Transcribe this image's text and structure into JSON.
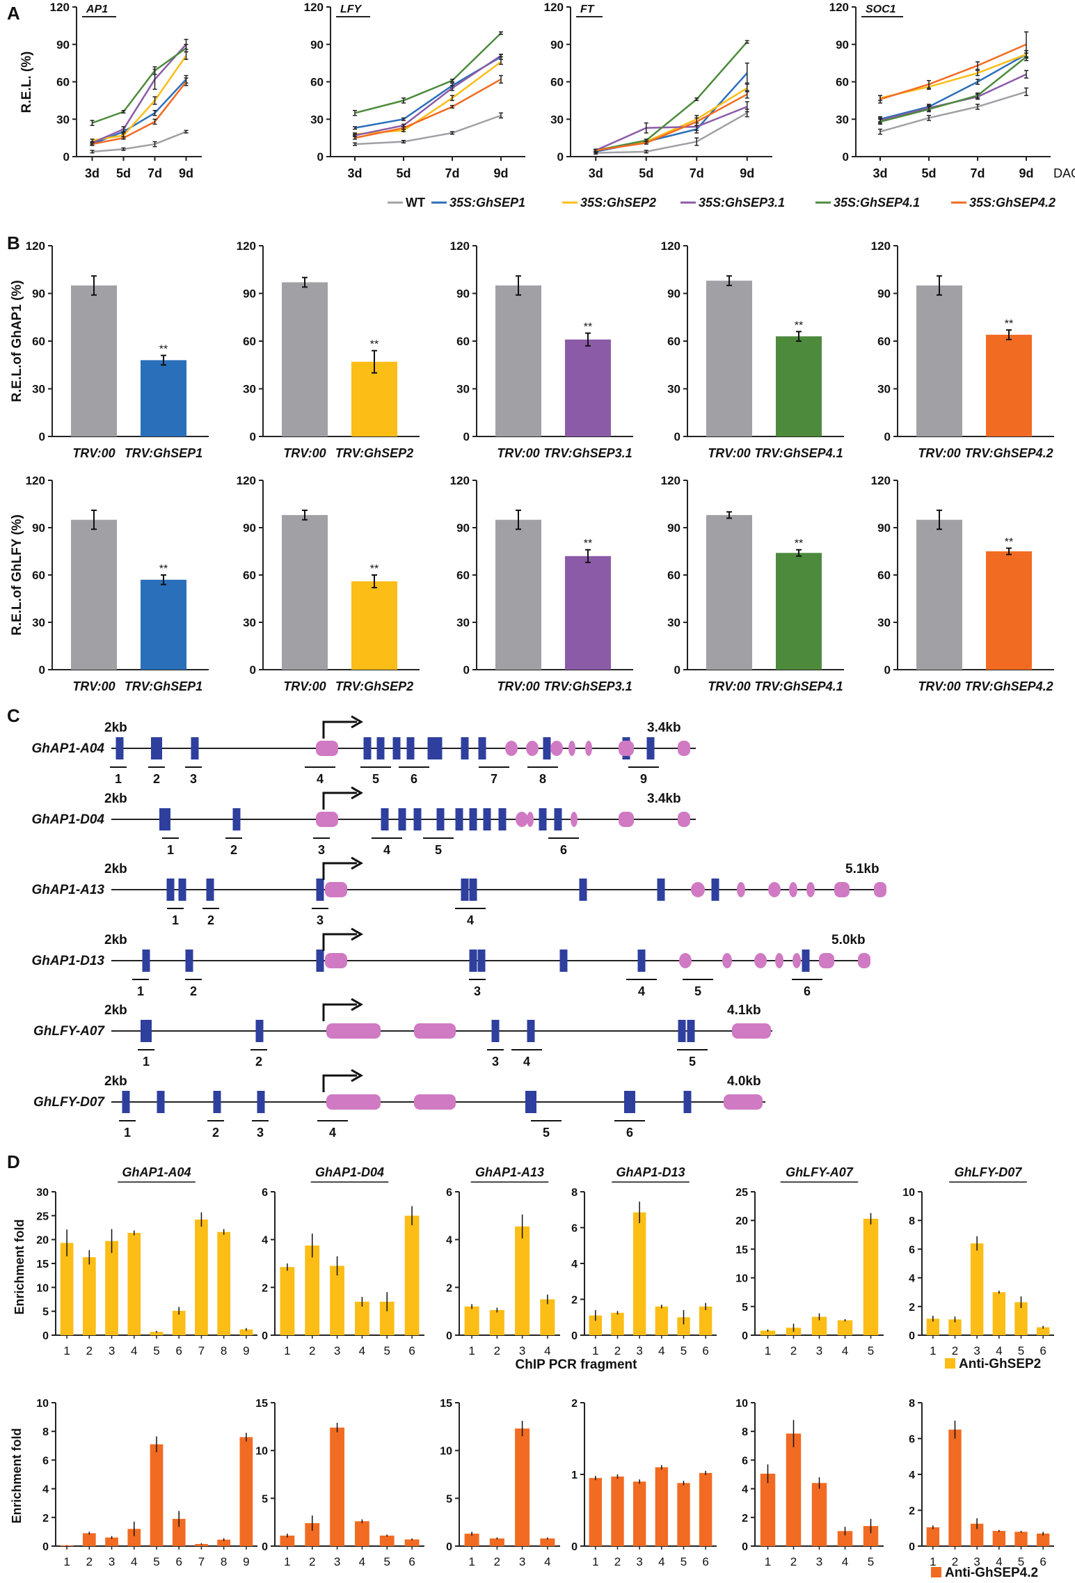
{
  "colors": {
    "WT": "#a0a0a5",
    "SEP1": "#2a6fba",
    "SEP2": "#fbbd16",
    "SEP31": "#8b5ba8",
    "SEP41": "#4d8a3c",
    "SEP42": "#f26b22",
    "exon": "#2e3f9e",
    "pink": "#d07ac3",
    "gray": "#a0a0a5",
    "axis": "#222222"
  },
  "panel_labels": [
    "A",
    "B",
    "C",
    "D"
  ],
  "panel_a": {
    "x_unit": "DAG",
    "y_label": "R.E.L. (%)",
    "legend": [
      "WT",
      "35S:GhSEP1",
      "35S:GhSEP2",
      "35S:GhSEP3.1",
      "35S:GhSEP4.1",
      "35S:GhSEP4.2"
    ]
  },
  "panel_b": {
    "y_label_ap1": "R.E.L.of GhAP1 (%)",
    "y_label_lfy": "R.E.L.of GhLFY (%)",
    "control_label": "TRV:00",
    "sig": "**"
  },
  "panel_c": {
    "scale_label": "2kb",
    "genes": [
      {
        "name": "GhAP1-A04",
        "length": "3.4kb",
        "fragments": [
          "1",
          "2",
          "3",
          "4",
          "5",
          "6",
          "7",
          "8",
          "9"
        ]
      },
      {
        "name": "GhAP1-D04",
        "length": "3.4kb",
        "fragments": [
          "1",
          "2",
          "3",
          "4",
          "5",
          "6"
        ]
      },
      {
        "name": "GhAP1-A13",
        "length": "5.1kb",
        "fragments": [
          "1",
          "2",
          "3",
          "4"
        ]
      },
      {
        "name": "GhAP1-D13",
        "length": "5.0kb",
        "fragments": [
          "1",
          "2",
          "3",
          "4",
          "5",
          "6"
        ]
      },
      {
        "name": "GhLFY-A07",
        "length": "4.1kb",
        "fragments": [
          "1",
          "2",
          "3",
          "4",
          "5"
        ]
      },
      {
        "name": "GhLFY-D07",
        "length": "4.0kb",
        "fragments": [
          "1",
          "2",
          "3",
          "4",
          "5",
          "6"
        ]
      }
    ]
  },
  "panel_d": {
    "y_label": "Enrichment fold",
    "x_label": "ChIP  PCR fragment",
    "legend_sep2": "Anti-GhSEP2",
    "legend_sep42": "Anti-GhSEP4.2"
  },
  "chart_data": [
    {
      "panel": "A",
      "type": "line",
      "title": "AP1",
      "categories": [
        "3d",
        "5d",
        "7d",
        "9d"
      ],
      "ylim": [
        0,
        120
      ],
      "yticks": [
        0,
        30,
        60,
        90,
        120
      ],
      "series": [
        {
          "name": "WT",
          "values": [
            4,
            6,
            10,
            20
          ],
          "err": [
            1,
            1,
            2,
            1
          ]
        },
        {
          "name": "35S:GhSEP1",
          "values": [
            10,
            20,
            35,
            62
          ],
          "err": [
            1,
            2,
            2,
            3
          ]
        },
        {
          "name": "35S:GhSEP2",
          "values": [
            13,
            17,
            45,
            81
          ],
          "err": [
            1,
            2,
            3,
            3
          ]
        },
        {
          "name": "35S:GhSEP3.1",
          "values": [
            11,
            22,
            62,
            90
          ],
          "err": [
            1,
            2,
            8,
            4
          ]
        },
        {
          "name": "35S:GhSEP4.1",
          "values": [
            27,
            36,
            69,
            87
          ],
          "err": [
            2,
            1,
            3,
            3
          ]
        },
        {
          "name": "35S:GhSEP4.2",
          "values": [
            10,
            15,
            28,
            60
          ],
          "err": [
            1,
            1,
            2,
            3
          ]
        }
      ]
    },
    {
      "panel": "A",
      "type": "line",
      "title": "LFY",
      "categories": [
        "3d",
        "5d",
        "7d",
        "9d"
      ],
      "ylim": [
        0,
        120
      ],
      "yticks": [
        0,
        30,
        60,
        90,
        120
      ],
      "series": [
        {
          "name": "WT",
          "values": [
            10,
            12,
            19,
            33
          ],
          "err": [
            1,
            1,
            1,
            2
          ]
        },
        {
          "name": "35S:GhSEP1",
          "values": [
            23,
            30,
            57,
            80
          ],
          "err": [
            1,
            1,
            2,
            2
          ]
        },
        {
          "name": "35S:GhSEP2",
          "values": [
            18,
            21,
            47,
            76
          ],
          "err": [
            1,
            1,
            2,
            2
          ]
        },
        {
          "name": "35S:GhSEP3.1",
          "values": [
            17,
            25,
            55,
            81
          ],
          "err": [
            1,
            1,
            2,
            1
          ]
        },
        {
          "name": "35S:GhSEP4.1",
          "values": [
            35,
            45,
            61,
            99
          ],
          "err": [
            2,
            2,
            1,
            1
          ]
        },
        {
          "name": "35S:GhSEP4.2",
          "values": [
            15,
            23,
            40,
            62
          ],
          "err": [
            1,
            1,
            1,
            3
          ]
        }
      ]
    },
    {
      "panel": "A",
      "type": "line",
      "title": "FT",
      "categories": [
        "3d",
        "5d",
        "7d",
        "9d"
      ],
      "ylim": [
        0,
        120
      ],
      "yticks": [
        0,
        30,
        60,
        90,
        120
      ],
      "series": [
        {
          "name": "WT",
          "values": [
            3,
            4,
            12,
            35
          ],
          "err": [
            1,
            1,
            3,
            3
          ]
        },
        {
          "name": "35S:GhSEP1",
          "values": [
            4,
            12,
            22,
            67
          ],
          "err": [
            1,
            1,
            3,
            8
          ]
        },
        {
          "name": "35S:GhSEP2",
          "values": [
            5,
            12,
            30,
            55
          ],
          "err": [
            1,
            1,
            3,
            3
          ]
        },
        {
          "name": "35S:GhSEP3.1",
          "values": [
            5,
            23,
            24,
            40
          ],
          "err": [
            1,
            4,
            3,
            4
          ]
        },
        {
          "name": "35S:GhSEP4.1",
          "values": [
            5,
            13,
            46,
            92
          ],
          "err": [
            1,
            1,
            1,
            1
          ]
        },
        {
          "name": "35S:GhSEP4.2",
          "values": [
            5,
            11,
            28,
            50
          ],
          "err": [
            1,
            1,
            3,
            3
          ]
        }
      ]
    },
    {
      "panel": "A",
      "type": "line",
      "title": "SOC1",
      "categories": [
        "3d",
        "5d",
        "7d",
        "9d"
      ],
      "ylim": [
        0,
        120
      ],
      "yticks": [
        0,
        30,
        60,
        90,
        120
      ],
      "series": [
        {
          "name": "WT",
          "values": [
            20,
            31,
            40,
            52
          ],
          "err": [
            2,
            2,
            2,
            3
          ]
        },
        {
          "name": "35S:GhSEP1",
          "values": [
            30,
            40,
            60,
            82
          ],
          "err": [
            2,
            2,
            2,
            3
          ]
        },
        {
          "name": "35S:GhSEP2",
          "values": [
            47,
            56,
            67,
            82
          ],
          "err": [
            2,
            2,
            2,
            3
          ]
        },
        {
          "name": "35S:GhSEP3.1",
          "values": [
            29,
            39,
            48,
            66
          ],
          "err": [
            2,
            2,
            2,
            3
          ]
        },
        {
          "name": "35S:GhSEP4.1",
          "values": [
            28,
            38,
            49,
            80
          ],
          "err": [
            2,
            2,
            2,
            3
          ]
        },
        {
          "name": "35S:GhSEP4.2",
          "values": [
            46,
            58,
            73,
            90
          ],
          "err": [
            3,
            3,
            3,
            10
          ]
        }
      ]
    },
    {
      "panel": "B",
      "type": "bar",
      "gene": "GhAP1",
      "categories": [
        "TRV:00",
        "TRV:GhSEP1"
      ],
      "values": [
        95,
        48
      ],
      "err": [
        6,
        3
      ],
      "ylim": [
        0,
        120
      ],
      "yticks": [
        0,
        30,
        60,
        90,
        120
      ]
    },
    {
      "panel": "B",
      "type": "bar",
      "gene": "GhAP1",
      "categories": [
        "TRV:00",
        "TRV:GhSEP2"
      ],
      "values": [
        97,
        47
      ],
      "err": [
        3,
        7
      ],
      "ylim": [
        0,
        120
      ],
      "yticks": [
        0,
        30,
        60,
        90,
        120
      ]
    },
    {
      "panel": "B",
      "type": "bar",
      "gene": "GhAP1",
      "categories": [
        "TRV:00",
        "TRV:GhSEP3.1"
      ],
      "values": [
        95,
        61
      ],
      "err": [
        6,
        4
      ],
      "ylim": [
        0,
        120
      ],
      "yticks": [
        0,
        30,
        60,
        90,
        120
      ]
    },
    {
      "panel": "B",
      "type": "bar",
      "gene": "GhAP1",
      "categories": [
        "TRV:00",
        "TRV:GhSEP4.1"
      ],
      "values": [
        98,
        63
      ],
      "err": [
        3,
        3
      ],
      "ylim": [
        0,
        120
      ],
      "yticks": [
        0,
        30,
        60,
        90,
        120
      ]
    },
    {
      "panel": "B",
      "type": "bar",
      "gene": "GhAP1",
      "categories": [
        "TRV:00",
        "TRV:GhSEP4.2"
      ],
      "values": [
        95,
        64
      ],
      "err": [
        6,
        3
      ],
      "ylim": [
        0,
        120
      ],
      "yticks": [
        0,
        30,
        60,
        90,
        120
      ]
    },
    {
      "panel": "B",
      "type": "bar",
      "gene": "GhLFY",
      "categories": [
        "TRV:00",
        "TRV:GhSEP1"
      ],
      "values": [
        95,
        57
      ],
      "err": [
        6,
        3
      ],
      "ylim": [
        0,
        120
      ],
      "yticks": [
        0,
        30,
        60,
        90,
        120
      ]
    },
    {
      "panel": "B",
      "type": "bar",
      "gene": "GhLFY",
      "categories": [
        "TRV:00",
        "TRV:GhSEP2"
      ],
      "values": [
        98,
        56
      ],
      "err": [
        3,
        4
      ],
      "ylim": [
        0,
        120
      ],
      "yticks": [
        0,
        30,
        60,
        90,
        120
      ]
    },
    {
      "panel": "B",
      "type": "bar",
      "gene": "GhLFY",
      "categories": [
        "TRV:00",
        "TRV:GhSEP3.1"
      ],
      "values": [
        95,
        72
      ],
      "err": [
        6,
        4
      ],
      "ylim": [
        0,
        120
      ],
      "yticks": [
        0,
        30,
        60,
        90,
        120
      ]
    },
    {
      "panel": "B",
      "type": "bar",
      "gene": "GhLFY",
      "categories": [
        "TRV:00",
        "TRV:GhSEP4.1"
      ],
      "values": [
        98,
        74
      ],
      "err": [
        2,
        2
      ],
      "ylim": [
        0,
        120
      ],
      "yticks": [
        0,
        30,
        60,
        90,
        120
      ]
    },
    {
      "panel": "B",
      "type": "bar",
      "gene": "GhLFY",
      "categories": [
        "TRV:00",
        "TRV:GhSEP4.2"
      ],
      "values": [
        95,
        75
      ],
      "err": [
        6,
        2
      ],
      "ylim": [
        0,
        120
      ],
      "yticks": [
        0,
        30,
        60,
        90,
        120
      ]
    },
    {
      "panel": "D",
      "type": "bar",
      "antibody": "Anti-GhSEP2",
      "title": "GhAP1-A04",
      "categories": [
        "1",
        "2",
        "3",
        "4",
        "5",
        "6",
        "7",
        "8",
        "9"
      ],
      "values": [
        19.3,
        16.3,
        19.7,
        21.4,
        0.7,
        5.1,
        24.2,
        21.6,
        1.2
      ],
      "err": [
        2.8,
        1.5,
        2.5,
        0.5,
        0.2,
        0.8,
        1.5,
        0.6,
        0.3
      ],
      "ylim": [
        0,
        30
      ],
      "yticks": [
        0,
        5,
        10,
        15,
        20,
        25,
        30
      ]
    },
    {
      "panel": "D",
      "type": "bar",
      "antibody": "Anti-GhSEP2",
      "title": "GhAP1-D04",
      "categories": [
        "1",
        "2",
        "3",
        "4",
        "5",
        "6"
      ],
      "values": [
        2.85,
        3.75,
        2.9,
        1.4,
        1.4,
        5.0
      ],
      "err": [
        0.15,
        0.5,
        0.4,
        0.2,
        0.4,
        0.4
      ],
      "ylim": [
        0,
        6
      ],
      "yticks": [
        0,
        2,
        4,
        6
      ]
    },
    {
      "panel": "D",
      "type": "bar",
      "antibody": "Anti-GhSEP2",
      "title": "GhAP1-A13",
      "categories": [
        "1",
        "2",
        "3",
        "4"
      ],
      "values": [
        1.2,
        1.05,
        4.55,
        1.5
      ],
      "err": [
        0.1,
        0.1,
        0.5,
        0.2
      ],
      "ylim": [
        0,
        6
      ],
      "yticks": [
        0,
        2,
        4,
        6
      ]
    },
    {
      "panel": "D",
      "type": "bar",
      "antibody": "Anti-GhSEP2",
      "title": "GhAP1-D13",
      "categories": [
        "1",
        "2",
        "3",
        "4",
        "5",
        "6"
      ],
      "values": [
        1.1,
        1.25,
        6.85,
        1.6,
        1.0,
        1.6
      ],
      "err": [
        0.3,
        0.1,
        0.6,
        0.1,
        0.4,
        0.2
      ],
      "ylim": [
        0,
        8
      ],
      "yticks": [
        0,
        2,
        4,
        6,
        8
      ]
    },
    {
      "panel": "D",
      "type": "bar",
      "antibody": "Anti-GhSEP2",
      "title": "GhLFY-A07",
      "categories": [
        "1",
        "2",
        "3",
        "4",
        "5"
      ],
      "values": [
        0.8,
        1.3,
        3.2,
        2.6,
        20.3
      ],
      "err": [
        0.2,
        0.7,
        0.6,
        0.2,
        1.0
      ],
      "ylim": [
        0,
        25
      ],
      "yticks": [
        0,
        5,
        10,
        15,
        20,
        25
      ]
    },
    {
      "panel": "D",
      "type": "bar",
      "antibody": "Anti-GhSEP2",
      "title": "GhLFY-D07",
      "categories": [
        "1",
        "2",
        "3",
        "4",
        "5",
        "6"
      ],
      "values": [
        1.15,
        1.1,
        6.4,
        3.0,
        2.3,
        0.55
      ],
      "err": [
        0.2,
        0.2,
        0.5,
        0.1,
        0.4,
        0.1
      ],
      "ylim": [
        0,
        10
      ],
      "yticks": [
        0,
        2,
        4,
        6,
        8,
        10
      ]
    },
    {
      "panel": "D",
      "type": "bar",
      "antibody": "Anti-GhSEP4.2",
      "title": "GhAP1-A04",
      "categories": [
        "1",
        "2",
        "3",
        "4",
        "5",
        "6",
        "7",
        "8",
        "9"
      ],
      "values": [
        0.05,
        0.9,
        0.6,
        1.2,
        7.1,
        1.9,
        0.15,
        0.45,
        7.6
      ],
      "err": [
        0.02,
        0.1,
        0.1,
        0.5,
        0.55,
        0.55,
        0.05,
        0.1,
        0.3
      ],
      "ylim": [
        0,
        10
      ],
      "yticks": [
        0,
        2,
        4,
        6,
        8,
        10
      ]
    },
    {
      "panel": "D",
      "type": "bar",
      "antibody": "Anti-GhSEP4.2",
      "title": "GhAP1-D04",
      "categories": [
        "1",
        "2",
        "3",
        "4",
        "5",
        "6"
      ],
      "values": [
        1.1,
        2.4,
        12.4,
        2.6,
        1.1,
        0.7
      ],
      "err": [
        0.2,
        0.8,
        0.5,
        0.2,
        0.1,
        0.1
      ],
      "ylim": [
        0,
        15
      ],
      "yticks": [
        0,
        5,
        10,
        15
      ]
    },
    {
      "panel": "D",
      "type": "bar",
      "antibody": "Anti-GhSEP4.2",
      "title": "GhAP1-A13",
      "categories": [
        "1",
        "2",
        "3",
        "4"
      ],
      "values": [
        1.3,
        0.8,
        12.3,
        0.8
      ],
      "err": [
        0.2,
        0.1,
        0.8,
        0.1
      ],
      "ylim": [
        0,
        15
      ],
      "yticks": [
        0,
        5,
        10,
        15
      ]
    },
    {
      "panel": "D",
      "type": "bar",
      "antibody": "Anti-GhSEP4.2",
      "title": "GhAP1-D13",
      "categories": [
        "1",
        "2",
        "3",
        "4",
        "5",
        "6"
      ],
      "values": [
        0.95,
        0.97,
        0.9,
        1.1,
        0.88,
        1.02
      ],
      "err": [
        0.03,
        0.03,
        0.03,
        0.03,
        0.03,
        0.03
      ],
      "ylim": [
        0,
        2
      ],
      "yticks": [
        0,
        1,
        2
      ]
    },
    {
      "panel": "D",
      "type": "bar",
      "antibody": "Anti-GhSEP4.2",
      "title": "GhLFY-A07",
      "categories": [
        "1",
        "2",
        "3",
        "4",
        "5"
      ],
      "values": [
        5.05,
        7.85,
        4.4,
        1.05,
        1.4
      ],
      "err": [
        0.65,
        0.95,
        0.4,
        0.3,
        0.5
      ],
      "ylim": [
        0,
        10
      ],
      "yticks": [
        0,
        2,
        4,
        6,
        8,
        10
      ]
    },
    {
      "panel": "D",
      "type": "bar",
      "antibody": "Anti-GhSEP4.2",
      "title": "GhLFY-D07",
      "categories": [
        "1",
        "2",
        "3",
        "4",
        "5",
        "6"
      ],
      "values": [
        1.05,
        6.5,
        1.25,
        0.85,
        0.8,
        0.7
      ],
      "err": [
        0.1,
        0.5,
        0.3,
        0.05,
        0.05,
        0.1
      ],
      "ylim": [
        0,
        8
      ],
      "yticks": [
        0,
        2,
        4,
        6,
        8
      ]
    }
  ]
}
